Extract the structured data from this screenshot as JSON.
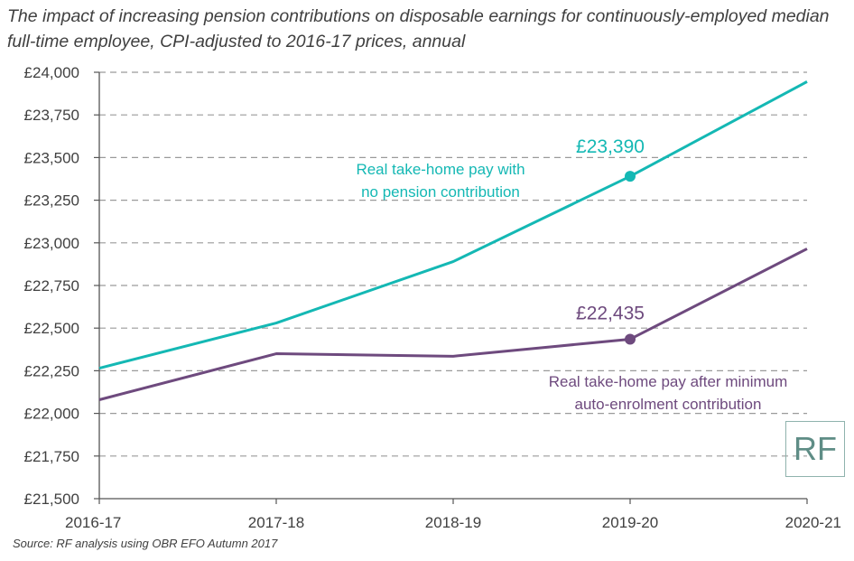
{
  "chart_data": {
    "type": "line",
    "title": "The impact of increasing pension contributions on disposable earnings for continuously-employed median full-time employee, CPI-adjusted to 2016-17 prices, annual",
    "source": "Source: RF analysis using OBR EFO Autumn 2017",
    "categories": [
      "2016-17",
      "2017-18",
      "2018-19",
      "2019-20",
      "2020-21"
    ],
    "ylim": [
      21500,
      24000
    ],
    "yticks": [
      21500,
      21750,
      22000,
      22250,
      22500,
      22750,
      23000,
      23250,
      23500,
      23750,
      24000
    ],
    "ytick_labels": [
      "£21,500",
      "£21,750",
      "£22,000",
      "£22,250",
      "£22,500",
      "£22,750",
      "£23,000",
      "£23,250",
      "£23,500",
      "£23,750",
      "£24,000"
    ],
    "grid": "horizontal dashed",
    "series": [
      {
        "name": "Real take-home pay with no pension contribution",
        "label_lines": [
          "Real take-home pay with",
          "no pension contribution"
        ],
        "color": "#14b8b4",
        "values": [
          22265,
          22530,
          22890,
          23390,
          23945
        ],
        "highlight_index": 3,
        "highlight_label": "£23,390"
      },
      {
        "name": "Real take-home pay after minimum auto-enrolment contribution",
        "label_lines": [
          "Real take-home pay after minimum",
          "auto-enrolment contribution"
        ],
        "color": "#6e4a7e",
        "values": [
          22080,
          22350,
          22335,
          22435,
          22965
        ],
        "highlight_index": 3,
        "highlight_label": "£22,435"
      }
    ]
  },
  "logo": {
    "text": "RF"
  }
}
